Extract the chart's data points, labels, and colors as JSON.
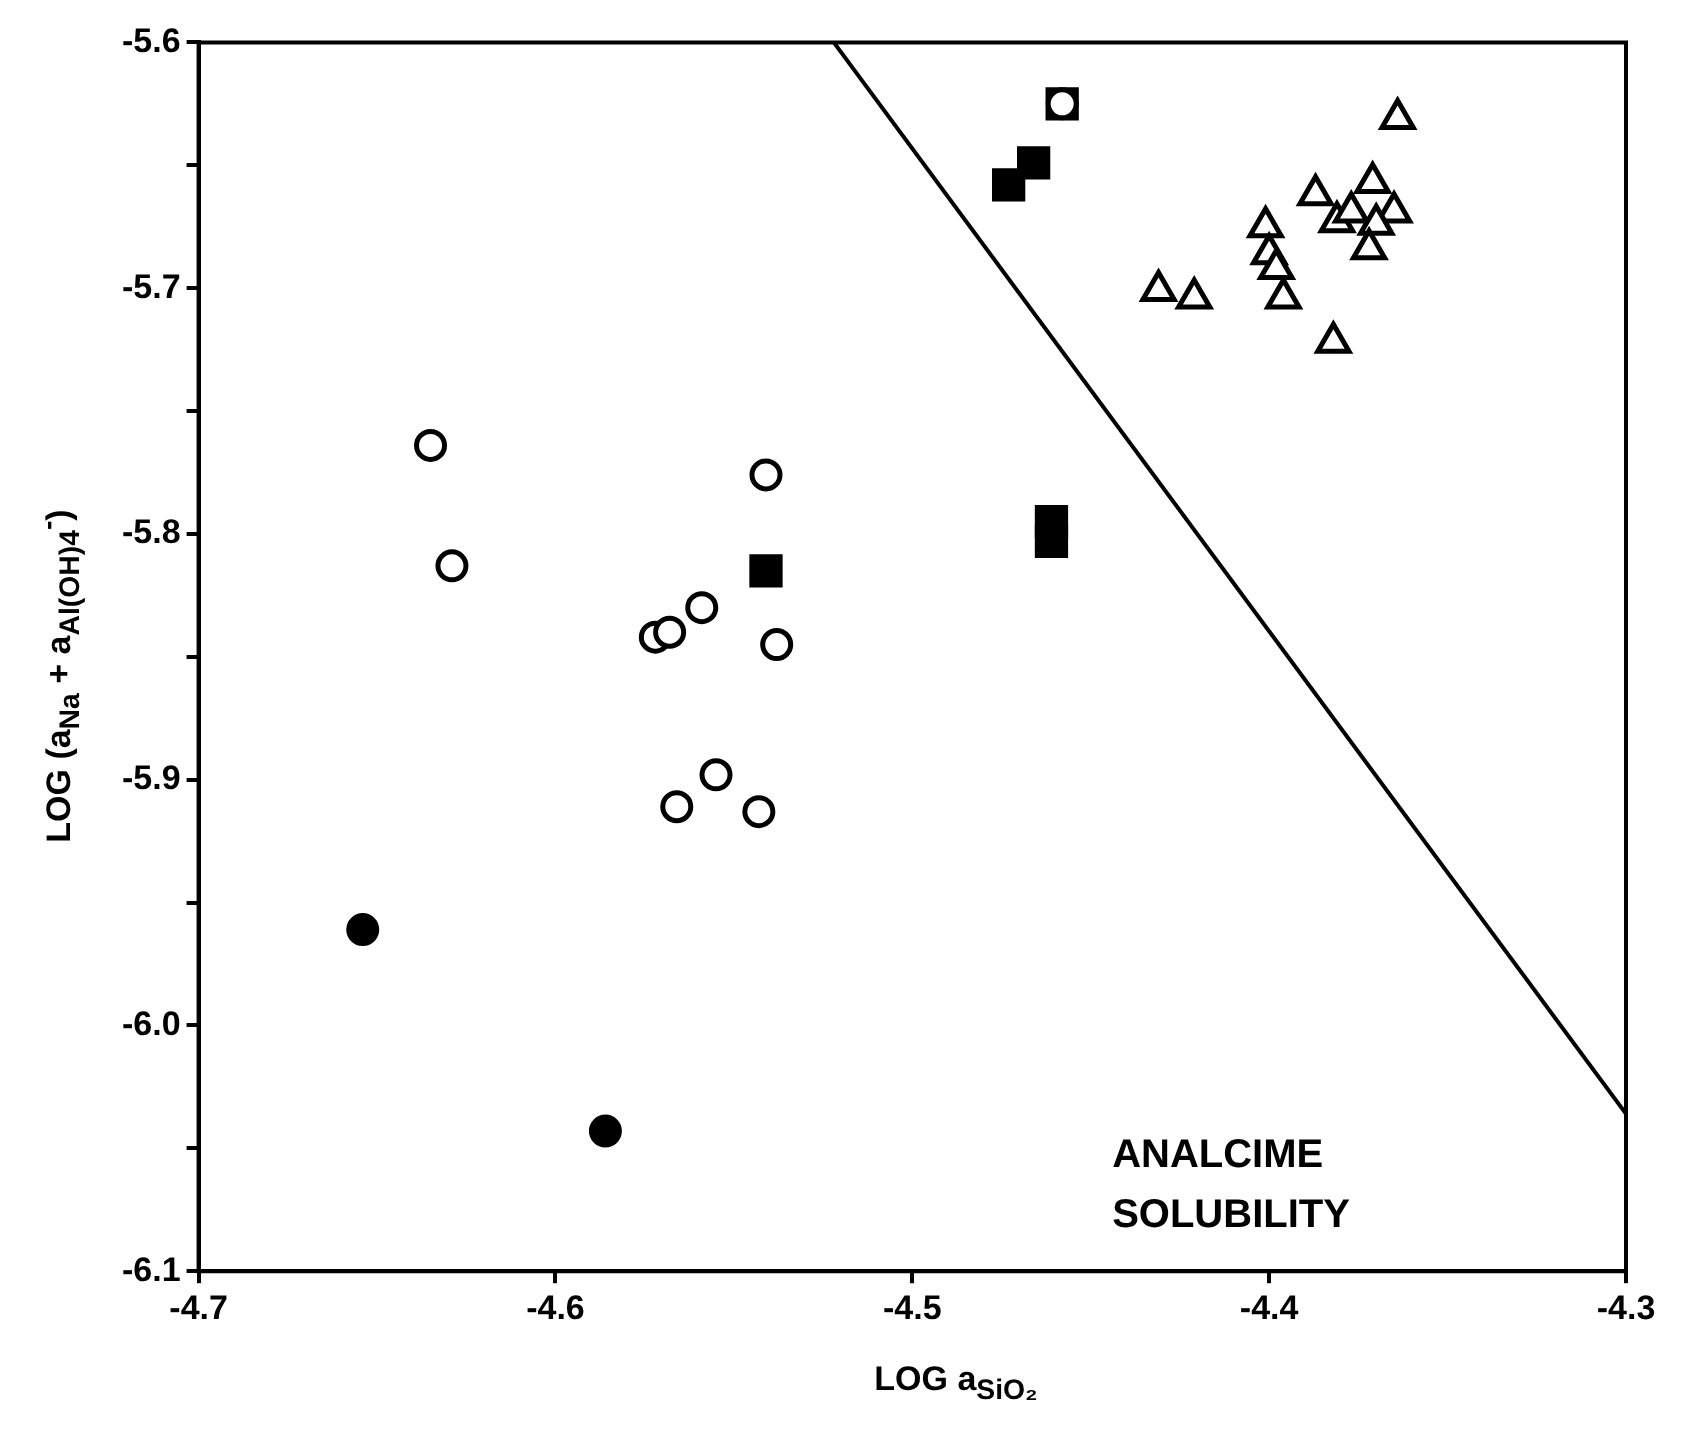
{
  "chart_data": {
    "type": "scatter",
    "xlabel": "LOG a$_{SiO₂}$",
    "ylabel": "LOG (a$_{Na}$ + a$_{Al(OH)}$$_{4}$$^{-}$)",
    "xlim": [
      -4.7,
      -4.3
    ],
    "xticks": [
      -4.7,
      -4.6,
      -4.5,
      -4.4,
      -4.3
    ],
    "ylim": [
      -6.1,
      -5.6
    ],
    "yticks": [
      -6.1,
      {
        "value": -6.05,
        "label": null
      },
      {
        "value": -6,
        "label": "-6.0"
      },
      {
        "value": -5.95,
        "label": null
      },
      -5.9,
      {
        "value": -5.85,
        "label": null
      },
      -5.8,
      {
        "value": -5.75,
        "label": null
      },
      -5.7,
      {
        "value": -5.65,
        "label": null
      },
      -5.6
    ],
    "grid": false,
    "legend": false,
    "annotations": [
      "ANALCIME\nSOLUBILITY"
    ],
    "series": [
      {
        "type": "line",
        "color": "#000000",
        "marker": "none",
        "line_style": "solid",
        "x": [
          -4.522,
          -4.3
        ],
        "values": [
          -5.6,
          -6.036
        ]
      },
      {
        "color": "#ffffff",
        "marker": "circle",
        "x": [
          -4.635,
          -4.629,
          -4.572,
          -4.568,
          -4.559,
          -4.541,
          -4.538,
          -4.555,
          -4.566,
          -4.543,
          -4.458
        ],
        "values": [
          -5.764,
          -5.813,
          -5.842,
          -5.84,
          -5.83,
          -5.776,
          -5.845,
          -5.898,
          -5.911,
          -5.913,
          -5.625
        ]
      },
      {
        "color": "#000000",
        "marker": "square",
        "x": [
          -4.541,
          -4.461,
          -4.461,
          -4.473,
          -4.466,
          -4.458
        ],
        "values": [
          -5.815,
          -5.795,
          -5.803,
          -5.658,
          -5.649,
          -5.625
        ]
      },
      {
        "color": "#000000",
        "marker": "circle",
        "x": [
          -4.654,
          -4.586
        ],
        "values": [
          -5.961,
          -6.043
        ]
      },
      {
        "color": "#ffffff",
        "marker": "triangle",
        "x": [
          -4.364,
          -4.387,
          -4.371,
          -4.401,
          -4.381,
          -4.377,
          -4.365,
          -4.37,
          -4.372,
          -4.4,
          -4.398,
          -4.396,
          -4.431,
          -4.421,
          -4.382
        ],
        "values": [
          -5.631,
          -5.662,
          -5.657,
          -5.675,
          -5.673,
          -5.669,
          -5.669,
          -5.674,
          -5.684,
          -5.686,
          -5.692,
          -5.704,
          -5.701,
          -5.704,
          -5.722
        ]
      }
    ]
  }
}
